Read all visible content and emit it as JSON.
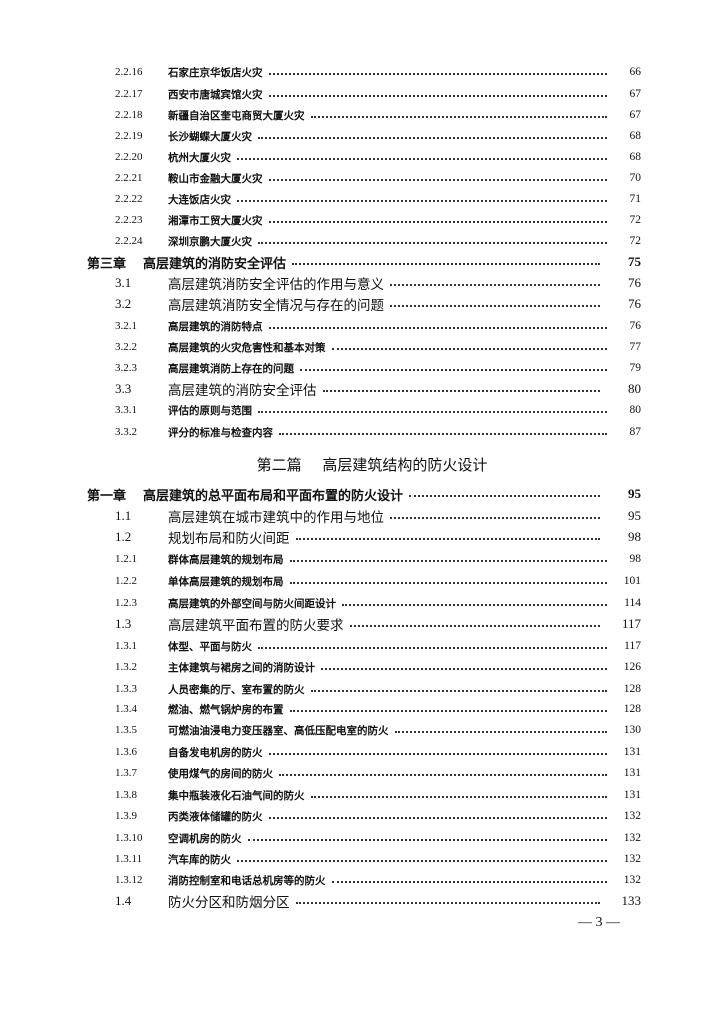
{
  "entries_a": [
    {
      "level": "sub",
      "num": "2.2.16",
      "title": "石家庄京华饭店火灾",
      "page": "66"
    },
    {
      "level": "sub",
      "num": "2.2.17",
      "title": "西安市唐城宾馆火灾",
      "page": "67"
    },
    {
      "level": "sub",
      "num": "2.2.18",
      "title": "新疆自治区奎屯商贸大厦火灾",
      "page": "67"
    },
    {
      "level": "sub",
      "num": "2.2.19",
      "title": "长沙蝴蝶大厦火灾",
      "page": "68"
    },
    {
      "level": "sub",
      "num": "2.2.20",
      "title": "杭州大厦火灾",
      "page": "68"
    },
    {
      "level": "sub",
      "num": "2.2.21",
      "title": "鞍山市金融大厦火灾",
      "page": "70"
    },
    {
      "level": "sub",
      "num": "2.2.22",
      "title": "大连饭店火灾",
      "page": "71"
    },
    {
      "level": "sub",
      "num": "2.2.23",
      "title": "湘潭市工贸大厦火灾",
      "page": "72"
    },
    {
      "level": "sub",
      "num": "2.2.24",
      "title": "深圳京鹏大厦火灾",
      "page": "72"
    },
    {
      "level": "chap",
      "num": "第三章",
      "title": "高层建筑的消防安全评估",
      "page": "75"
    },
    {
      "level": "sec",
      "num": "3.1",
      "title": "高层建筑消防安全评估的作用与意义",
      "page": "76"
    },
    {
      "level": "sec",
      "num": "3.2",
      "title": "高层建筑消防安全情况与存在的问题",
      "page": "76"
    },
    {
      "level": "sub",
      "num": "3.2.1",
      "title": "高层建筑的消防特点",
      "page": "76"
    },
    {
      "level": "sub",
      "num": "3.2.2",
      "title": "高层建筑的火灾危害性和基本对策",
      "page": "77"
    },
    {
      "level": "sub",
      "num": "3.2.3",
      "title": "高层建筑消防上存在的问题",
      "page": "79"
    },
    {
      "level": "sec",
      "num": "3.3",
      "title": "高层建筑的消防安全评估",
      "page": "80"
    },
    {
      "level": "sub",
      "num": "3.3.1",
      "title": "评估的原则与范围",
      "page": "80"
    },
    {
      "level": "sub",
      "num": "3.3.2",
      "title": "评分的标准与检查内容",
      "page": "87"
    }
  ],
  "part": {
    "label": "第二篇",
    "title": "高层建筑结构的防火设计"
  },
  "entries_b": [
    {
      "level": "chap",
      "num": "第一章",
      "title": "高层建筑的总平面布局和平面布置的防火设计",
      "page": "95"
    },
    {
      "level": "sec",
      "num": "1.1",
      "title": "高层建筑在城市建筑中的作用与地位",
      "page": "95"
    },
    {
      "level": "sec",
      "num": "1.2",
      "title": "规划布局和防火间距",
      "page": "98"
    },
    {
      "level": "sub",
      "num": "1.2.1",
      "title": "群体高层建筑的规划布局",
      "page": "98"
    },
    {
      "level": "sub",
      "num": "1.2.2",
      "title": "单体高层建筑的规划布局",
      "page": "101"
    },
    {
      "level": "sub",
      "num": "1.2.3",
      "title": "高层建筑的外部空间与防火间距设计",
      "page": "114"
    },
    {
      "level": "sec",
      "num": "1.3",
      "title": "高层建筑平面布置的防火要求",
      "page": "117"
    },
    {
      "level": "sub",
      "num": "1.3.1",
      "title": "体型、平面与防火",
      "page": "117"
    },
    {
      "level": "sub",
      "num": "1.3.2",
      "title": "主体建筑与裙房之间的消防设计",
      "page": "126"
    },
    {
      "level": "sub",
      "num": "1.3.3",
      "title": "人员密集的厅、室布置的防火",
      "page": "128"
    },
    {
      "level": "sub",
      "num": "1.3.4",
      "title": "燃油、燃气锅炉房的布置",
      "page": "128"
    },
    {
      "level": "sub",
      "num": "1.3.5",
      "title": "可燃油油浸电力变压器室、高低压配电室的防火",
      "page": "130"
    },
    {
      "level": "sub",
      "num": "1.3.6",
      "title": "自备发电机房的防火",
      "page": "131"
    },
    {
      "level": "sub",
      "num": "1.3.7",
      "title": "使用煤气的房间的防火",
      "page": "131"
    },
    {
      "level": "sub",
      "num": "1.3.8",
      "title": "集中瓶装液化石油气间的防火",
      "page": "131"
    },
    {
      "level": "sub",
      "num": "1.3.9",
      "title": "丙类液体储罐的防火",
      "page": "132"
    },
    {
      "level": "sub",
      "num": "1.3.10",
      "title": "空调机房的防火",
      "page": "132"
    },
    {
      "level": "sub",
      "num": "1.3.11",
      "title": "汽车库的防火",
      "page": "132"
    },
    {
      "level": "sub",
      "num": "1.3.12",
      "title": "消防控制室和电话总机房等的防火",
      "page": "132"
    },
    {
      "level": "sec",
      "num": "1.4",
      "title": "防火分区和防烟分区",
      "page": "133"
    }
  ],
  "page_number": "— 3 —"
}
